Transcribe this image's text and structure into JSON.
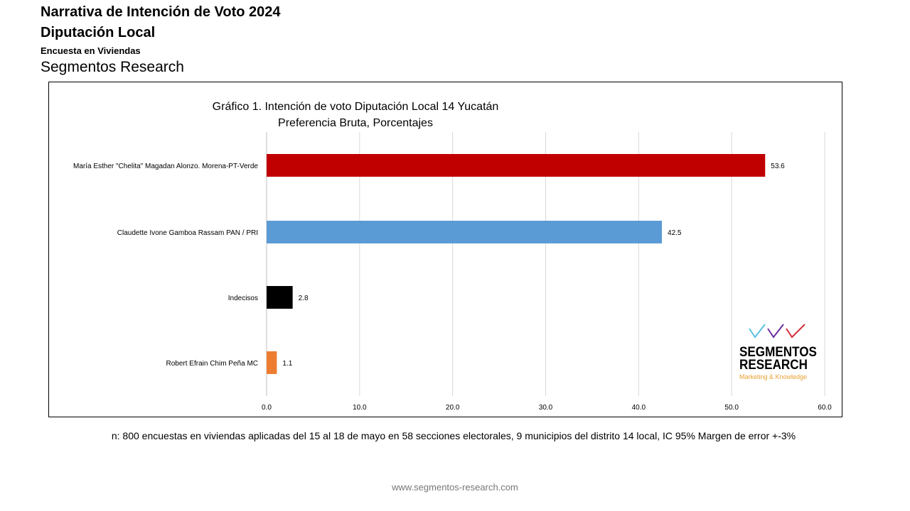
{
  "header": {
    "title": "Narrativa de Intención de Voto 2024",
    "subtitle": "Diputación Local",
    "survey_type": "Encuesta en Viviendas",
    "company": "Segmentos Research"
  },
  "chart_data": {
    "type": "bar",
    "orientation": "horizontal",
    "title": "Gráfico 1. Intención de voto Diputación Local 14 Yucatán",
    "subtitle": "Preferencia Bruta, Porcentajes",
    "categories": [
      "María Esther \"Chelita\" Magadan Alonzo. Morena-PT-Verde",
      "Claudette Ivone Gamboa Rassam PAN / PRI",
      "Indecisos",
      "Robert Efrain Chim Peña MC"
    ],
    "values": [
      53.6,
      42.5,
      2.8,
      1.1
    ],
    "colors": [
      "#c00000",
      "#5b9bd5",
      "#000000",
      "#ed7d31"
    ],
    "xlim": [
      0,
      60
    ],
    "xticks": [
      "0.0",
      "10.0",
      "20.0",
      "30.0",
      "40.0",
      "50.0",
      "60.0"
    ],
    "grid": true
  },
  "logo": {
    "line1": "SEGMENTOS",
    "line2": "RESEARCH",
    "tagline": "Marketing & Knowledge"
  },
  "footer": {
    "note": "n: 800  encuestas en viviendas aplicadas del 15 al 18 de mayo en  58 secciones electorales, 9 municipios del distrito 14 local,  IC 95% Margen de error +-3%",
    "url": "www.segmentos-research.com"
  }
}
